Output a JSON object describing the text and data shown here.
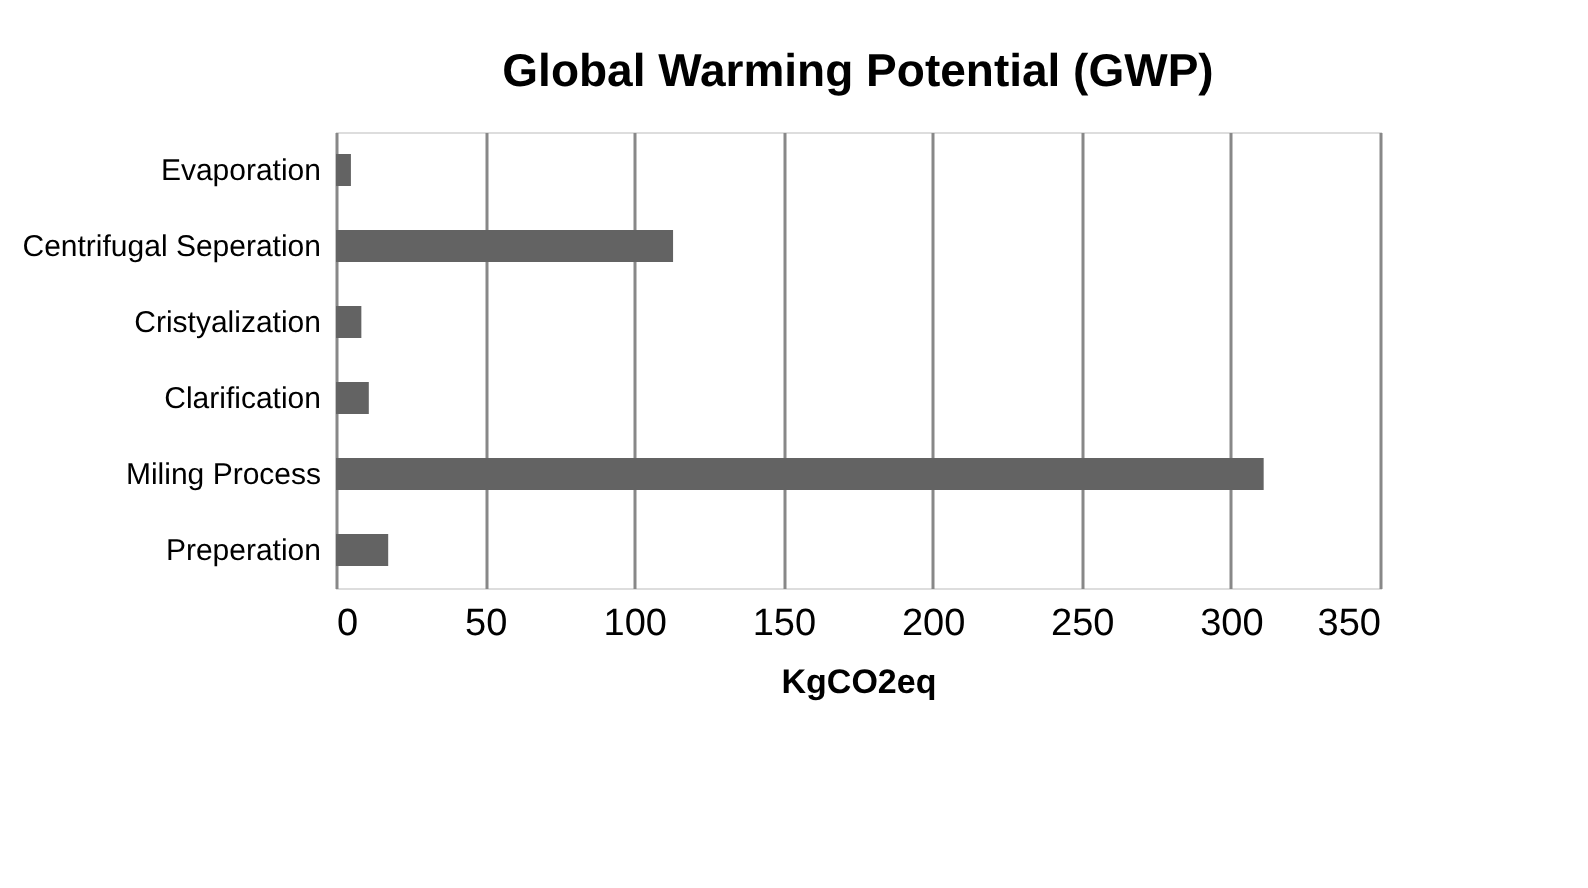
{
  "chart_data": {
    "type": "bar",
    "orientation": "horizontal",
    "title": "Global Warming Potential (GWP)",
    "xlabel": "KgCO2eq",
    "categories": [
      "Evaporation",
      "Centrifugal Seperation",
      "Cristyalization",
      "Clarification",
      "Miling Process",
      "Preperation"
    ],
    "values": [
      5,
      113,
      8.5,
      11,
      311,
      17.5
    ],
    "color": "#636363",
    "xlim": [
      0,
      350
    ],
    "xticks": [
      0,
      50,
      100,
      150,
      200,
      250,
      300,
      350
    ],
    "grid": "x"
  }
}
